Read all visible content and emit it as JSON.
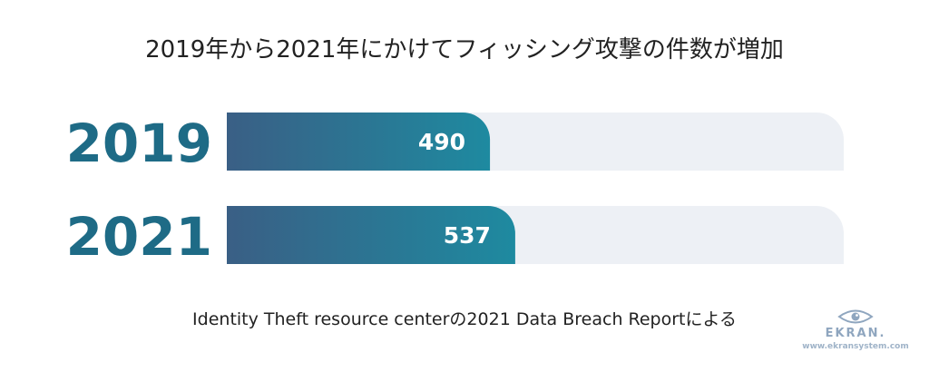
{
  "chart_data": {
    "type": "bar",
    "orientation": "horizontal",
    "title": "2019年から2021年にかけてフィッシング攻撃の件数が増加",
    "categories": [
      "2019",
      "2021"
    ],
    "values": [
      490,
      537
    ],
    "xlim": [
      0,
      1000
    ],
    "grid": false,
    "legend": "none",
    "colors": {
      "bar_start": "#3a5f85",
      "bar_end": "#1e8aa0",
      "track": "#edf0f5",
      "category_label": "#1e6b86",
      "value_label": "#ffffff"
    }
  },
  "footnote": "Identity Theft resource centerの2021 Data Breach Reportによる",
  "brand": {
    "name": "EKRAN.",
    "url": "www.ekransystem.com",
    "icon": "eye-icon",
    "color": "#8fa6bf"
  }
}
